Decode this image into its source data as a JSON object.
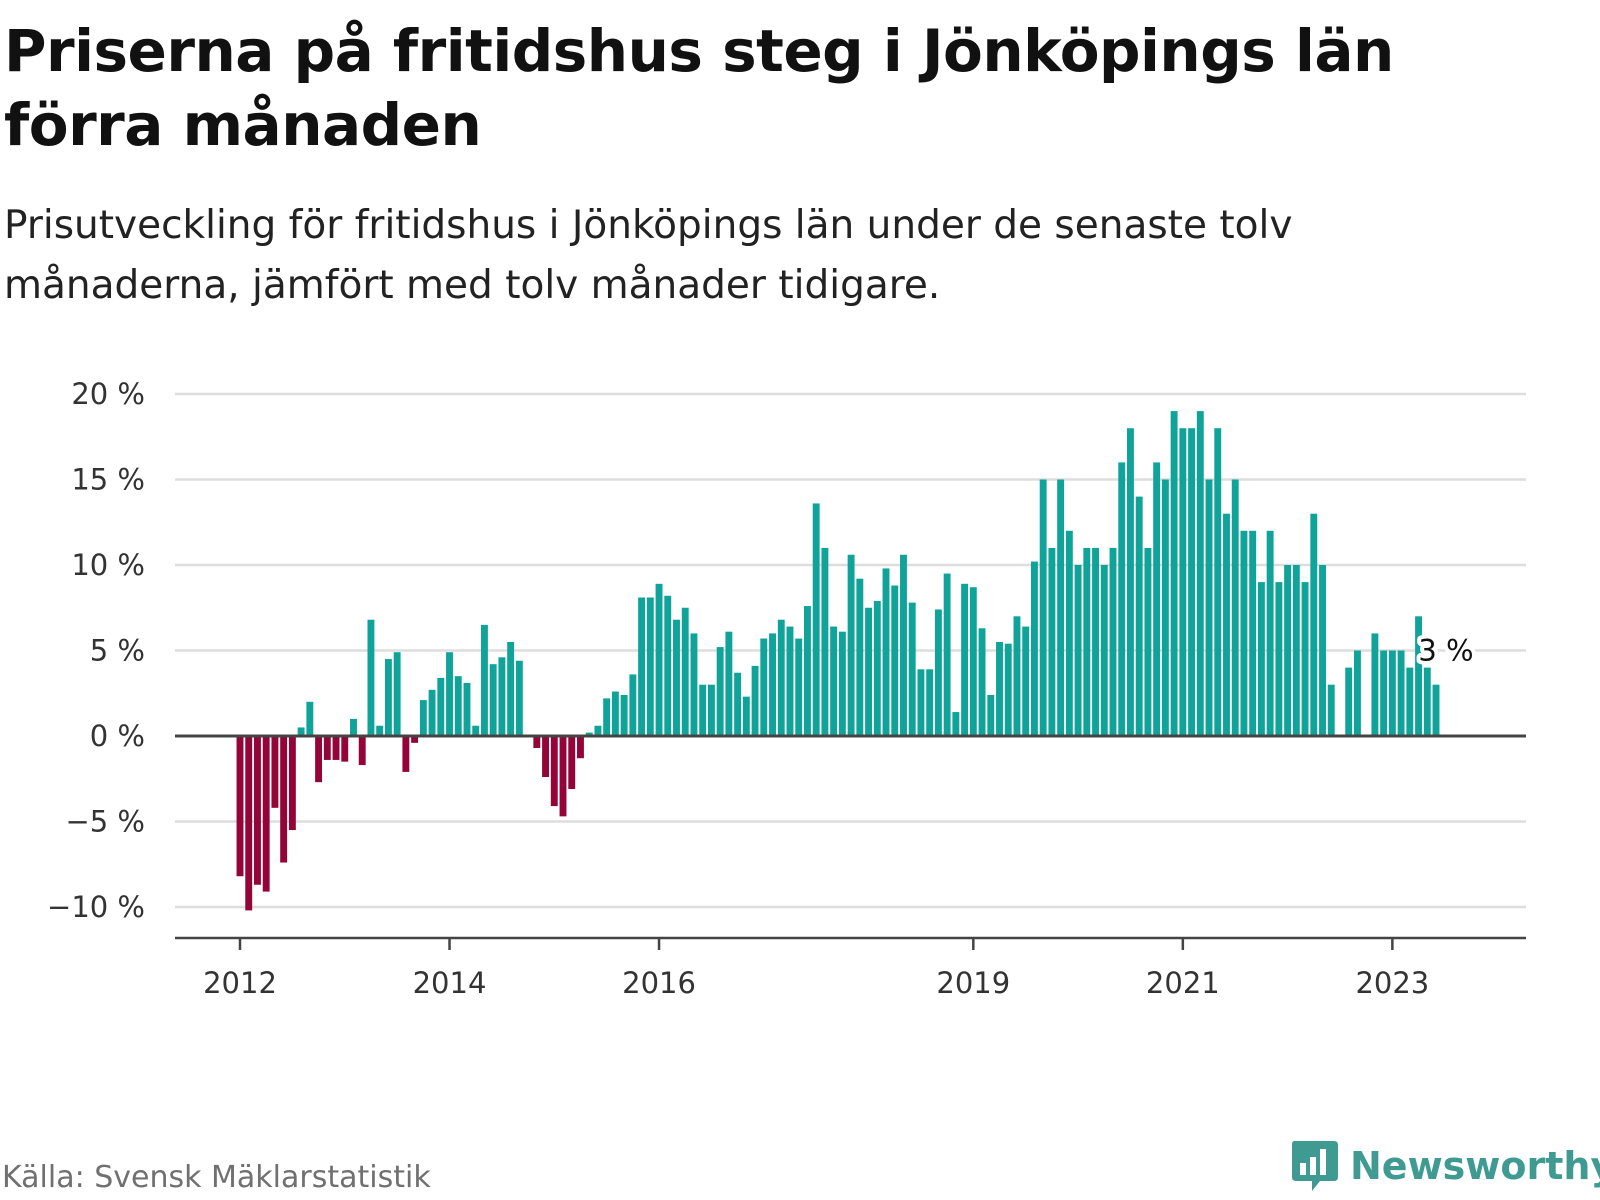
{
  "header": {
    "title": "Priserna på fritidshus steg i Jönköpings län förra månaden",
    "subtitle": "Prisutveckling för fritidshus i Jönköpings län under de senaste tolv månaderna, jämfört med tolv månader tidigare."
  },
  "footer": {
    "source": "Källa: Svensk Mäklarstatistik",
    "brand": "Newsworthy"
  },
  "colors": {
    "positive": "#0fa39a",
    "negative": "#950438",
    "grid": "#dddddd",
    "zero_line": "#444444",
    "brand": "#3f9a92"
  },
  "chart_data": {
    "type": "bar",
    "title": "Priserna på fritidshus steg i Jönköpings län förra månaden",
    "subtitle": "Prisutveckling för fritidshus i Jönköpings län under de senaste tolv månaderna, jämfört med tolv månader tidigare.",
    "xlabel": "",
    "ylabel": "",
    "unit": "%",
    "ylim": [
      -12,
      20
    ],
    "y_ticks": [
      -10,
      -5,
      0,
      5,
      10,
      15,
      20
    ],
    "y_tick_labels": [
      "−10 %",
      "−5 %",
      "0 %",
      "5 %",
      "10 %",
      "15 %",
      "20 %"
    ],
    "x_ticks": [
      2012,
      2014,
      2016,
      2019,
      2021,
      2023
    ],
    "x_tick_labels": [
      "2012",
      "2014",
      "2016",
      "2019",
      "2021",
      "2023"
    ],
    "grid": true,
    "legend": "none",
    "end_label": "3 %",
    "end_value": 3,
    "series": [
      {
        "values": [
          -8.2,
          -10.2,
          -8.7,
          -9.1,
          -4.2,
          -7.4,
          -5.5,
          0.5,
          2.0,
          -2.7,
          -1.4,
          -1.4,
          -1.5,
          1.0,
          -1.7,
          6.8,
          0.6,
          4.5,
          4.9,
          -2.1,
          -0.4,
          2.1,
          2.7,
          3.4,
          4.9,
          3.5,
          3.1,
          0.6,
          6.5,
          4.2,
          4.6,
          5.5,
          4.4,
          null,
          -0.7,
          -2.4,
          -4.1,
          -4.7,
          -3.1,
          -1.3,
          0.2,
          0.6,
          2.2,
          2.6,
          2.4,
          3.6,
          8.1,
          8.1,
          8.9,
          8.2,
          6.8,
          7.5,
          6.0,
          3.0,
          3.0,
          5.2,
          6.1,
          3.7,
          2.3,
          4.1,
          5.7,
          6.0,
          6.8,
          6.4,
          5.7,
          7.6,
          13.6,
          11.0,
          6.4,
          6.1,
          10.6,
          9.2,
          7.5,
          7.9,
          9.8,
          8.8,
          10.6,
          7.8,
          3.9,
          3.9,
          7.4,
          9.5,
          1.4,
          8.9,
          8.7,
          6.3,
          2.4,
          5.5,
          5.4,
          7.0,
          6.4,
          10.2,
          15.0,
          11.0,
          15.0,
          12.0,
          10.0,
          11.0,
          11.0,
          10.0,
          11.0,
          16.0,
          18.0,
          14.0,
          11.0,
          16.0,
          15.0,
          19.0,
          18.0,
          18.0,
          19.0,
          15.0,
          18.0,
          13.0,
          15.0,
          12.0,
          12.0,
          9.0,
          12.0,
          9.0,
          10.0,
          10.0,
          9.0,
          13.0,
          10.0,
          3.0,
          null,
          4.0,
          5.0,
          null,
          6.0,
          5.0,
          5.0,
          5.0,
          4.0,
          7.0,
          4.0,
          3.0
        ]
      }
    ]
  }
}
